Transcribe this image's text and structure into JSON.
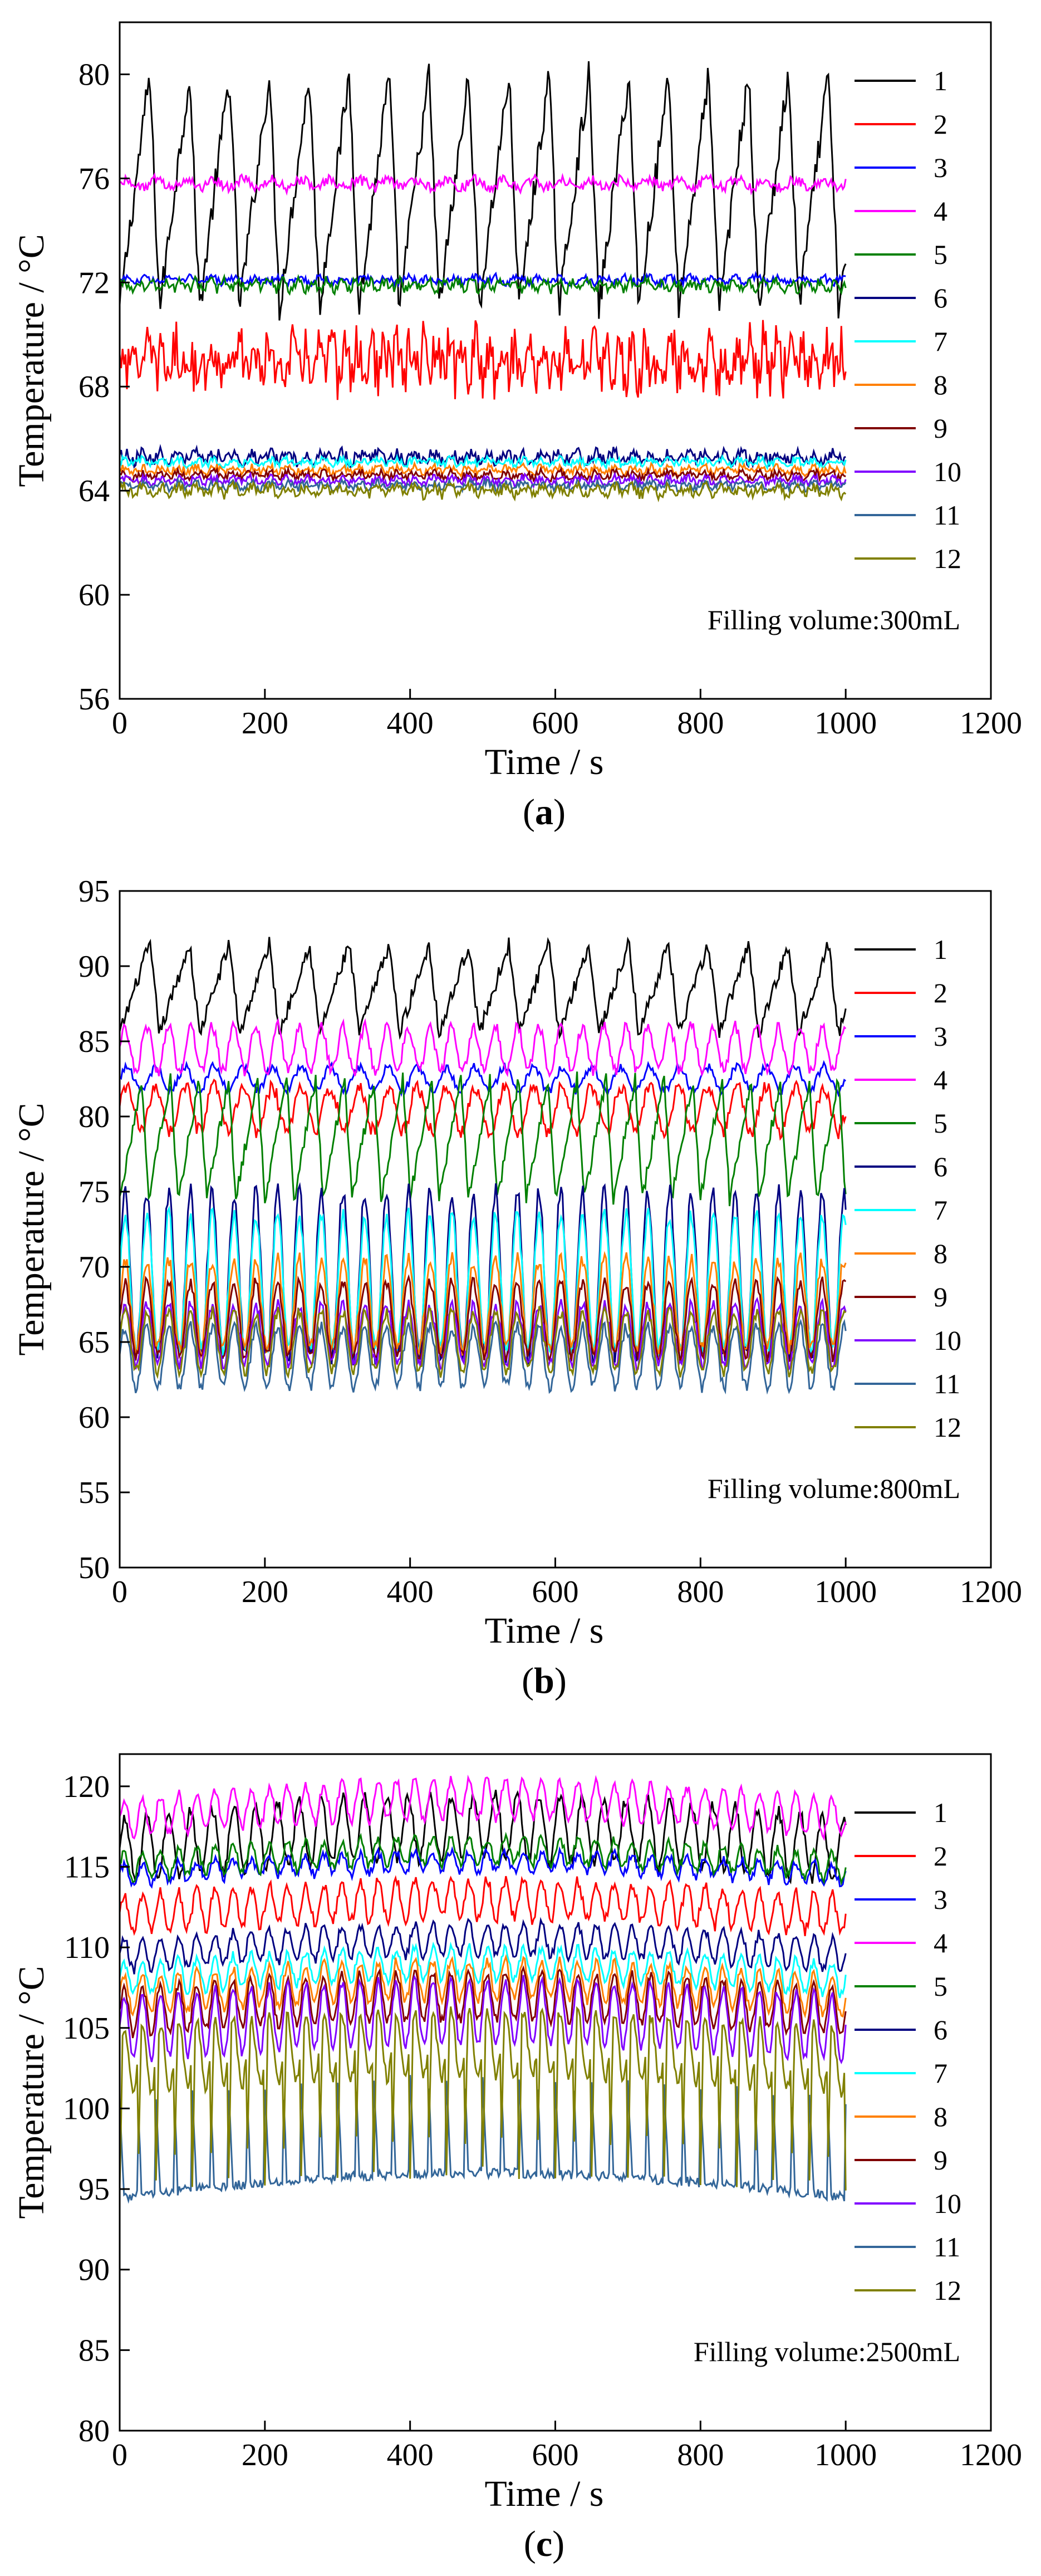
{
  "series_colors": {
    "1": "#000000",
    "2": "#ff0000",
    "3": "#0000ff",
    "4": "#ff00ff",
    "5": "#008000",
    "6": "#000080",
    "7": "#00ffff",
    "8": "#ff8000",
    "9": "#800000",
    "10": "#8000ff",
    "11": "#336699",
    "12": "#808000"
  },
  "chart_data": [
    {
      "type": "line",
      "panel": "a",
      "caption": "(a)",
      "xlabel": "Time / s",
      "ylabel": "Temperature / °C",
      "xlim": [
        0,
        1200
      ],
      "ylim": [
        56,
        82
      ],
      "xticks": [
        0,
        200,
        400,
        600,
        800,
        1000,
        1200
      ],
      "yticks": [
        56,
        60,
        64,
        68,
        72,
        76,
        80
      ],
      "annotation": "Filling volume:300mL",
      "legend": [
        "1",
        "2",
        "3",
        "4",
        "5",
        "6",
        "7",
        "8",
        "9",
        "10",
        "11",
        "12"
      ],
      "series": [
        {
          "name": "1",
          "base": 75.5,
          "amp": 4.5,
          "period": 55,
          "noise": 0.6,
          "shape": "saw"
        },
        {
          "name": "2",
          "base": 69.0,
          "amp": 1.2,
          "period": 18,
          "noise": 1.0,
          "shape": "noise"
        },
        {
          "name": "3",
          "base": 72.1,
          "amp": 0.2,
          "period": 30,
          "noise": 0.15,
          "shape": "noise"
        },
        {
          "name": "4",
          "base": 75.8,
          "amp": 0.3,
          "period": 40,
          "noise": 0.2,
          "shape": "noise"
        },
        {
          "name": "5",
          "base": 71.9,
          "amp": 0.3,
          "period": 20,
          "noise": 0.2,
          "shape": "noise"
        },
        {
          "name": "6",
          "base": 65.3,
          "amp": 0.3,
          "period": 25,
          "noise": 0.25,
          "shape": "noise"
        },
        {
          "name": "7",
          "base": 65.1,
          "amp": 0.2,
          "period": 25,
          "noise": 0.15,
          "shape": "noise"
        },
        {
          "name": "8",
          "base": 64.8,
          "amp": 0.2,
          "period": 25,
          "noise": 0.15,
          "shape": "noise"
        },
        {
          "name": "9",
          "base": 64.6,
          "amp": 0.2,
          "period": 25,
          "noise": 0.15,
          "shape": "noise"
        },
        {
          "name": "10",
          "base": 64.4,
          "amp": 0.2,
          "period": 25,
          "noise": 0.15,
          "shape": "noise"
        },
        {
          "name": "11",
          "base": 64.2,
          "amp": 0.2,
          "period": 25,
          "noise": 0.15,
          "shape": "noise"
        },
        {
          "name": "12",
          "base": 64.0,
          "amp": 0.3,
          "period": 25,
          "noise": 0.2,
          "shape": "noise"
        }
      ]
    },
    {
      "type": "line",
      "panel": "b",
      "caption": "(b)",
      "xlabel": "Time / s",
      "ylabel": "Temperature / °C",
      "xlim": [
        0,
        1200
      ],
      "ylim": [
        50,
        95
      ],
      "xticks": [
        0,
        200,
        400,
        600,
        800,
        1000,
        1200
      ],
      "yticks": [
        50,
        55,
        60,
        65,
        70,
        75,
        80,
        85,
        90,
        95
      ],
      "annotation": "Filling volume:800mL",
      "legend": [
        "1",
        "2",
        "3",
        "4",
        "5",
        "6",
        "7",
        "8",
        "9",
        "10",
        "11",
        "12"
      ],
      "series": [
        {
          "name": "1",
          "base": 88.5,
          "amp": 3.0,
          "period": 55,
          "noise": 0.5,
          "shape": "saw"
        },
        {
          "name": "2",
          "base": 80.5,
          "amp": 1.5,
          "period": 40,
          "noise": 0.5,
          "shape": "sine"
        },
        {
          "name": "3",
          "base": 82.5,
          "amp": 0.8,
          "period": 40,
          "noise": 0.3,
          "shape": "sine"
        },
        {
          "name": "4",
          "base": 84.5,
          "amp": 1.5,
          "period": 30,
          "noise": 0.4,
          "shape": "sine"
        },
        {
          "name": "5",
          "base": 78.5,
          "amp": 4.0,
          "period": 40,
          "noise": 0.5,
          "shape": "saw"
        },
        {
          "name": "6",
          "base": 69.5,
          "amp": 5.5,
          "period": 30,
          "noise": 0.6,
          "shape": "sine"
        },
        {
          "name": "7",
          "base": 69.0,
          "amp": 4.5,
          "period": 30,
          "noise": 0.5,
          "shape": "sine"
        },
        {
          "name": "8",
          "base": 67.5,
          "amp": 3.0,
          "period": 30,
          "noise": 0.5,
          "shape": "sine"
        },
        {
          "name": "9",
          "base": 66.5,
          "amp": 2.5,
          "period": 30,
          "noise": 0.4,
          "shape": "sine"
        },
        {
          "name": "10",
          "base": 65.5,
          "amp": 2.0,
          "period": 30,
          "noise": 0.4,
          "shape": "sine"
        },
        {
          "name": "11",
          "base": 64.0,
          "amp": 2.0,
          "period": 30,
          "noise": 0.4,
          "shape": "sine"
        },
        {
          "name": "12",
          "base": 65.0,
          "amp": 2.0,
          "period": 30,
          "noise": 0.4,
          "shape": "sine"
        }
      ]
    },
    {
      "type": "line",
      "panel": "c",
      "caption": "(c)",
      "xlabel": "Time / s",
      "ylabel": "Temperature / °C",
      "xlim": [
        0,
        1200
      ],
      "ylim": [
        80,
        122
      ],
      "xticks": [
        0,
        200,
        400,
        600,
        800,
        1000,
        1200
      ],
      "yticks": [
        80,
        85,
        90,
        95,
        100,
        105,
        110,
        115,
        120
      ],
      "annotation": "Filling volume:2500mL",
      "legend": [
        "1",
        "2",
        "3",
        "4",
        "5",
        "6",
        "7",
        "8",
        "9",
        "10",
        "11",
        "12"
      ],
      "series": [
        {
          "name": "1",
          "base": 116.0,
          "amp": 2.0,
          "period": 30,
          "noise": 0.4,
          "shape": "sine",
          "hump": 1.5
        },
        {
          "name": "2",
          "base": 112.0,
          "amp": 1.2,
          "period": 25,
          "noise": 0.4,
          "shape": "sine",
          "hump": 1.0
        },
        {
          "name": "3",
          "base": 114.5,
          "amp": 0.6,
          "period": 25,
          "noise": 0.3,
          "shape": "sine",
          "hump": 0.8
        },
        {
          "name": "4",
          "base": 118.0,
          "amp": 1.2,
          "period": 25,
          "noise": 0.3,
          "shape": "sine",
          "hump": 1.2
        },
        {
          "name": "5",
          "base": 115.0,
          "amp": 0.8,
          "period": 25,
          "noise": 0.3,
          "shape": "sine",
          "hump": 1.0
        },
        {
          "name": "6",
          "base": 109.5,
          "amp": 1.0,
          "period": 25,
          "noise": 0.3,
          "shape": "sine",
          "hump": 1.0
        },
        {
          "name": "7",
          "base": 108.0,
          "amp": 1.0,
          "period": 25,
          "noise": 0.3,
          "shape": "sine",
          "hump": 1.0
        },
        {
          "name": "8",
          "base": 107.0,
          "amp": 1.2,
          "period": 25,
          "noise": 0.3,
          "shape": "sine",
          "hump": 1.0
        },
        {
          "name": "9",
          "base": 106.0,
          "amp": 1.5,
          "period": 25,
          "noise": 0.3,
          "shape": "sine",
          "hump": 1.0
        },
        {
          "name": "10",
          "base": 105.0,
          "amp": 2.0,
          "period": 25,
          "noise": 0.3,
          "shape": "sine",
          "hump": 1.0
        },
        {
          "name": "11",
          "base": 95.5,
          "amp": 2.5,
          "period": 25,
          "noise": 0.3,
          "shape": "spike",
          "hump": 1.5
        },
        {
          "name": "12",
          "base": 103.0,
          "amp": 4.0,
          "period": 25,
          "noise": 0.4,
          "shape": "dip",
          "hump": 1.0
        }
      ]
    }
  ]
}
